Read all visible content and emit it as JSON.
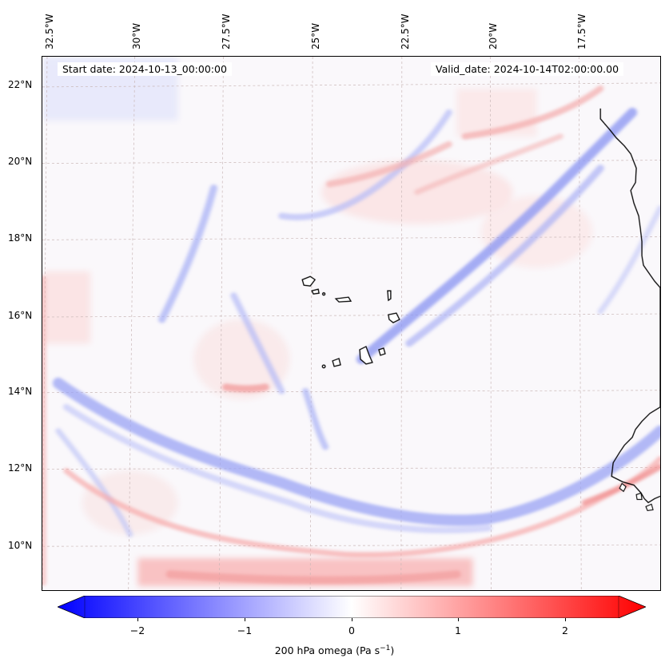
{
  "map": {
    "start_date_text": "Start date: 2024-10-13_00:00:00",
    "valid_date_text": "Valid_date: 2024-10-14T02:00:00.00",
    "lon_labels": [
      "32.5°W",
      "30°W",
      "27.5°W",
      "25°W",
      "22.5°W",
      "20°W",
      "17.5°W"
    ],
    "lat_labels": [
      "22°N",
      "20°N",
      "18°N",
      "16°N",
      "14°N",
      "12°N",
      "10°N"
    ],
    "lon_range": [
      -33.0,
      -15.0
    ],
    "lat_range": [
      8.8,
      22.8
    ],
    "gridlines": true,
    "colormap": "bwr"
  },
  "colorbar": {
    "label_main": "200 hPa omega (Pa s",
    "label_exp": "−1",
    "label_close": ")",
    "ticks": [
      "−2",
      "−1",
      "0",
      "1",
      "2"
    ],
    "range": [
      -2.6,
      2.6
    ],
    "colors": {
      "negative": "#0000ff",
      "zero": "#ffffff",
      "positive": "#ff0000"
    }
  }
}
